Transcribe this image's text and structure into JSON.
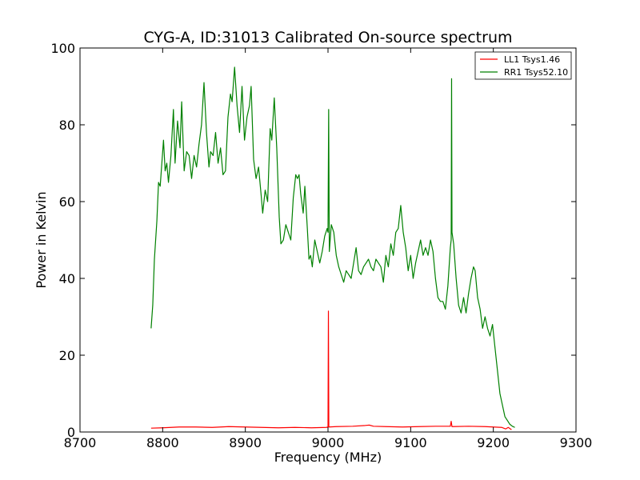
{
  "chart_data": {
    "type": "line",
    "title": "CYG-A, ID:31013 Calibrated On-source spectrum",
    "xlabel": "Frequency (MHz)",
    "ylabel": "Power in Kelvin",
    "xlim": [
      8700,
      9300
    ],
    "ylim": [
      0,
      100
    ],
    "xticks": [
      8700,
      8800,
      8900,
      9000,
      9100,
      9200,
      9300
    ],
    "yticks": [
      0,
      20,
      40,
      60,
      80,
      100
    ],
    "grid": false,
    "legend_position": "top-right",
    "series": [
      {
        "name": "LL1 Tsys1.46",
        "color": "#ff0000",
        "points": [
          [
            8786,
            1.0
          ],
          [
            8800,
            1.1
          ],
          [
            8820,
            1.3
          ],
          [
            8840,
            1.3
          ],
          [
            8860,
            1.2
          ],
          [
            8880,
            1.4
          ],
          [
            8900,
            1.3
          ],
          [
            8920,
            1.2
          ],
          [
            8940,
            1.1
          ],
          [
            8960,
            1.2
          ],
          [
            8980,
            1.1
          ],
          [
            8998,
            1.2
          ],
          [
            9000,
            1.3
          ],
          [
            9000.5,
            31.5
          ],
          [
            9001,
            1.3
          ],
          [
            9010,
            1.4
          ],
          [
            9030,
            1.5
          ],
          [
            9045,
            1.7
          ],
          [
            9050,
            1.8
          ],
          [
            9055,
            1.5
          ],
          [
            9070,
            1.4
          ],
          [
            9090,
            1.3
          ],
          [
            9110,
            1.4
          ],
          [
            9130,
            1.5
          ],
          [
            9148,
            1.5
          ],
          [
            9149,
            2.8
          ],
          [
            9150,
            1.4
          ],
          [
            9170,
            1.5
          ],
          [
            9190,
            1.4
          ],
          [
            9200,
            1.3
          ],
          [
            9210,
            1.2
          ],
          [
            9215,
            0.8
          ],
          [
            9218,
            1.2
          ],
          [
            9222,
            0.6
          ]
        ]
      },
      {
        "name": "RR1 Tsys52.10",
        "color": "#008000",
        "points": [
          [
            8786,
            27
          ],
          [
            8788,
            33
          ],
          [
            8790,
            45
          ],
          [
            8793,
            55
          ],
          [
            8795,
            65
          ],
          [
            8797,
            64
          ],
          [
            8799,
            70
          ],
          [
            8801,
            76
          ],
          [
            8803,
            68
          ],
          [
            8805,
            70
          ],
          [
            8807,
            65
          ],
          [
            8810,
            72
          ],
          [
            8813,
            84
          ],
          [
            8815,
            70
          ],
          [
            8818,
            81
          ],
          [
            8821,
            74
          ],
          [
            8823,
            86
          ],
          [
            8826,
            68
          ],
          [
            8829,
            73
          ],
          [
            8832,
            72
          ],
          [
            8835,
            66
          ],
          [
            8838,
            72
          ],
          [
            8841,
            69
          ],
          [
            8844,
            75
          ],
          [
            8847,
            80
          ],
          [
            8850,
            91
          ],
          [
            8853,
            78
          ],
          [
            8856,
            69
          ],
          [
            8858,
            73
          ],
          [
            8861,
            72
          ],
          [
            8864,
            78
          ],
          [
            8867,
            70
          ],
          [
            8870,
            74
          ],
          [
            8873,
            67
          ],
          [
            8876,
            68
          ],
          [
            8879,
            82
          ],
          [
            8882,
            88
          ],
          [
            8884,
            86
          ],
          [
            8887,
            95
          ],
          [
            8890,
            85
          ],
          [
            8893,
            78
          ],
          [
            8896,
            90
          ],
          [
            8899,
            76
          ],
          [
            8902,
            82
          ],
          [
            8905,
            85
          ],
          [
            8907,
            90
          ],
          [
            8910,
            71
          ],
          [
            8913,
            66
          ],
          [
            8916,
            69
          ],
          [
            8919,
            62
          ],
          [
            8921,
            57
          ],
          [
            8924,
            63
          ],
          [
            8927,
            60
          ],
          [
            8930,
            79
          ],
          [
            8932,
            76
          ],
          [
            8935,
            87
          ],
          [
            8938,
            74
          ],
          [
            8941,
            56
          ],
          [
            8943,
            49
          ],
          [
            8946,
            50
          ],
          [
            8949,
            54
          ],
          [
            8952,
            52
          ],
          [
            8955,
            50
          ],
          [
            8958,
            61
          ],
          [
            8961,
            67
          ],
          [
            8963,
            66
          ],
          [
            8965,
            67
          ],
          [
            8967,
            62
          ],
          [
            8970,
            57
          ],
          [
            8972,
            64
          ],
          [
            8975,
            53
          ],
          [
            8977,
            45
          ],
          [
            8979,
            46
          ],
          [
            8981,
            43
          ],
          [
            8984,
            50
          ],
          [
            8987,
            47
          ],
          [
            8990,
            44
          ],
          [
            8993,
            47
          ],
          [
            8996,
            51
          ],
          [
            8999,
            53
          ],
          [
            9000,
            52
          ],
          [
            9000.8,
            84
          ],
          [
            9001.6,
            47
          ],
          [
            9004,
            54
          ],
          [
            9007,
            52
          ],
          [
            9010,
            46
          ],
          [
            9013,
            43
          ],
          [
            9016,
            41
          ],
          [
            9019,
            39
          ],
          [
            9022,
            42
          ],
          [
            9025,
            41
          ],
          [
            9028,
            40
          ],
          [
            9031,
            44
          ],
          [
            9034,
            48
          ],
          [
            9037,
            42
          ],
          [
            9040,
            41
          ],
          [
            9043,
            43
          ],
          [
            9046,
            44
          ],
          [
            9049,
            45
          ],
          [
            9052,
            43
          ],
          [
            9055,
            42
          ],
          [
            9058,
            45
          ],
          [
            9061,
            44
          ],
          [
            9064,
            43
          ],
          [
            9067,
            39
          ],
          [
            9070,
            46
          ],
          [
            9073,
            43
          ],
          [
            9076,
            49
          ],
          [
            9079,
            46
          ],
          [
            9082,
            52
          ],
          [
            9085,
            53
          ],
          [
            9088,
            59
          ],
          [
            9091,
            52
          ],
          [
            9094,
            48
          ],
          [
            9097,
            42
          ],
          [
            9100,
            46
          ],
          [
            9103,
            40
          ],
          [
            9106,
            44
          ],
          [
            9109,
            47
          ],
          [
            9112,
            50
          ],
          [
            9115,
            46
          ],
          [
            9118,
            48
          ],
          [
            9121,
            46
          ],
          [
            9124,
            50
          ],
          [
            9127,
            47
          ],
          [
            9130,
            40
          ],
          [
            9133,
            35
          ],
          [
            9136,
            34
          ],
          [
            9139,
            34
          ],
          [
            9142,
            32
          ],
          [
            9145,
            38
          ],
          [
            9148,
            48
          ],
          [
            9149,
            50
          ],
          [
            9149.5,
            92
          ],
          [
            9150,
            52
          ],
          [
            9152,
            49
          ],
          [
            9155,
            40
          ],
          [
            9158,
            33
          ],
          [
            9161,
            31
          ],
          [
            9164,
            35
          ],
          [
            9167,
            31
          ],
          [
            9170,
            36
          ],
          [
            9173,
            40
          ],
          [
            9176,
            43
          ],
          [
            9178,
            42
          ],
          [
            9181,
            35
          ],
          [
            9184,
            32
          ],
          [
            9187,
            27
          ],
          [
            9190,
            30
          ],
          [
            9193,
            27
          ],
          [
            9196,
            25
          ],
          [
            9199,
            28
          ],
          [
            9202,
            22
          ],
          [
            9205,
            16
          ],
          [
            9208,
            10
          ],
          [
            9211,
            7
          ],
          [
            9214,
            4
          ],
          [
            9217,
            3
          ],
          [
            9220,
            2
          ],
          [
            9223,
            1.5
          ],
          [
            9226,
            1.2
          ]
        ]
      }
    ]
  }
}
